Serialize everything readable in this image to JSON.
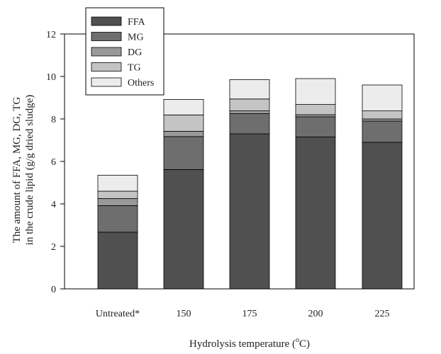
{
  "chart_data": {
    "type": "bar",
    "stacked": true,
    "categories": [
      "Untreated*",
      "150",
      "175",
      "200",
      "225"
    ],
    "series": [
      {
        "name": "FFA",
        "color": "#505050",
        "values": [
          2.67,
          5.62,
          7.3,
          7.15,
          6.9
        ]
      },
      {
        "name": "MG",
        "color": "#6e6e6e",
        "values": [
          1.25,
          1.55,
          0.95,
          0.95,
          1.0
        ]
      },
      {
        "name": "DG",
        "color": "#999999",
        "values": [
          0.33,
          0.25,
          0.13,
          0.1,
          0.1
        ]
      },
      {
        "name": "TG",
        "color": "#c4c4c4",
        "values": [
          0.35,
          0.77,
          0.56,
          0.48,
          0.38
        ]
      },
      {
        "name": "Others",
        "color": "#ececec",
        "values": [
          0.75,
          0.73,
          0.91,
          1.22,
          1.22
        ]
      }
    ],
    "ylabel_line1": "The amount of  FFA, MG, DG, TG",
    "ylabel_line2": "in  the crude lipid (g/g dried sludge)",
    "xlabel_main": "Hydrolysis temperature (",
    "xlabel_sup": "o",
    "xlabel_end": "C)",
    "ylim": [
      0,
      12
    ],
    "yticks": [
      0,
      2,
      4,
      6,
      8,
      10,
      12
    ],
    "legend_position": "top-left",
    "grid": false
  }
}
